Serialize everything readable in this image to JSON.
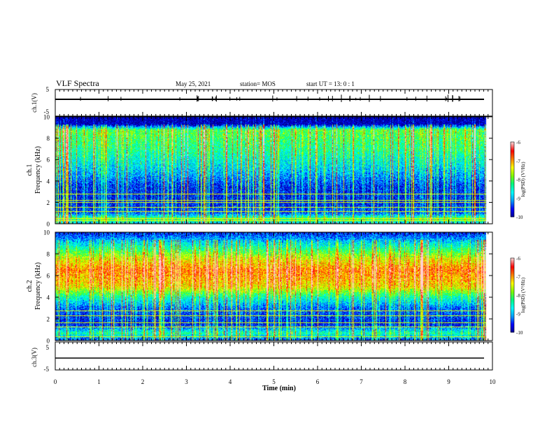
{
  "header": {
    "title": "VLF Spectra",
    "date": "May 25, 2021",
    "station": "station= MOS",
    "start": "start  UT =   13: 0  : 1"
  },
  "colorbar": {
    "label": "log(PSD) (V²/Hz)",
    "ticks": [
      "-6",
      "-7",
      "-8",
      "-9",
      "-10"
    ],
    "range": [
      -10,
      -6
    ],
    "colors": [
      "#000090",
      "#0000ff",
      "#00a0ff",
      "#00ffff",
      "#00ff80",
      "#80ff00",
      "#ffff00",
      "#ff8000",
      "#ff0000",
      "#ffd0d0"
    ]
  },
  "chart_data": [
    {
      "type": "line",
      "ylabel": "ch.1(V)",
      "ylim": [
        -5,
        5
      ],
      "y_ticks": [
        "5",
        "-5"
      ],
      "x": [
        0,
        9.85
      ],
      "values": [
        0,
        0
      ]
    },
    {
      "type": "heatmap",
      "ylabel": "ch.1\nFrequency (kHz)",
      "xlim": [
        0,
        10
      ],
      "ylim": [
        0,
        10
      ],
      "y_ticks": [
        "10",
        "8",
        "6",
        "4",
        "2",
        "0"
      ],
      "data_xlim": [
        0,
        9.85
      ],
      "z_range": [
        -10,
        -6
      ],
      "profile": [
        {
          "f": 0.0,
          "z": -9.0
        },
        {
          "f": 0.5,
          "z": -8.0
        },
        {
          "f": 1.0,
          "z": -9.3
        },
        {
          "f": 2.0,
          "z": -9.6
        },
        {
          "f": 3.5,
          "z": -9.5
        },
        {
          "f": 5.0,
          "z": -8.9
        },
        {
          "f": 7.0,
          "z": -8.3
        },
        {
          "f": 8.8,
          "z": -8.0
        },
        {
          "f": 9.3,
          "z": -9.9
        },
        {
          "f": 10.0,
          "z": -10.0
        }
      ],
      "lines_khz": [
        0.3,
        0.55,
        1.2,
        1.6,
        2.0,
        2.2,
        2.8
      ]
    },
    {
      "type": "heatmap",
      "ylabel": "ch.2\nFrequency (kHz)",
      "xlim": [
        0,
        10
      ],
      "ylim": [
        0,
        10
      ],
      "y_ticks": [
        "10",
        "8",
        "6",
        "4",
        "2",
        "0"
      ],
      "data_xlim": [
        0,
        9.85
      ],
      "z_range": [
        -10,
        -6
      ],
      "profile": [
        {
          "f": 0.0,
          "z": -9.5
        },
        {
          "f": 0.7,
          "z": -8.4
        },
        {
          "f": 1.5,
          "z": -9.6
        },
        {
          "f": 3.0,
          "z": -9.3
        },
        {
          "f": 4.0,
          "z": -8.5
        },
        {
          "f": 5.0,
          "z": -7.3
        },
        {
          "f": 6.5,
          "z": -6.9
        },
        {
          "f": 7.5,
          "z": -7.4
        },
        {
          "f": 8.5,
          "z": -8.3
        },
        {
          "f": 9.5,
          "z": -9.2
        },
        {
          "f": 10.0,
          "z": -9.6
        }
      ],
      "lines_khz": [
        0.4,
        1.3,
        1.7,
        2.3,
        2.8
      ]
    },
    {
      "type": "line",
      "ylabel": "ch.3(V)",
      "ylim": [
        -5,
        5
      ],
      "y_ticks": [
        "5",
        "-5"
      ],
      "x": [
        0,
        9.85
      ],
      "values": [
        0,
        0
      ]
    }
  ],
  "xaxis": {
    "label": "Time  (min)",
    "ticks": [
      "0",
      "1",
      "2",
      "3",
      "4",
      "5",
      "6",
      "7",
      "8",
      "9",
      "10"
    ],
    "xlim": [
      0,
      10
    ]
  }
}
